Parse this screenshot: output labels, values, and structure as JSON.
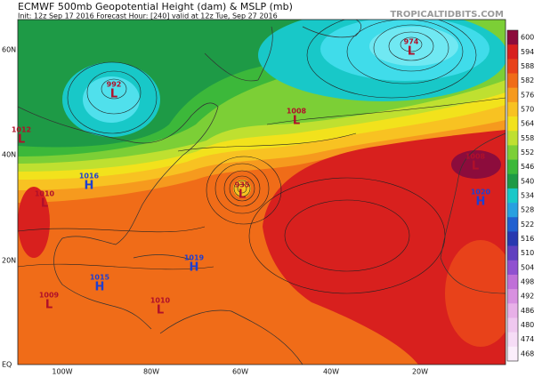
{
  "header": {
    "title": "ECMWF 500mb Geopotential Height (dam) & MSLP (mb)",
    "subtitle": "Init: 12z Sep 17 2016   Forecast Hour: [240]   valid at 12z Tue, Sep 27 2016",
    "credit": "TROPICALTIDBITS.COM"
  },
  "colorbar": {
    "levels": [
      600,
      594,
      588,
      582,
      576,
      570,
      564,
      558,
      552,
      546,
      540,
      534,
      528,
      522,
      516,
      510,
      504,
      498,
      492,
      486,
      480,
      474,
      468
    ],
    "colors": [
      "#8c0c3c",
      "#d8201e",
      "#e8421a",
      "#f06c18",
      "#f69a1e",
      "#f8c222",
      "#f2e21c",
      "#bfe030",
      "#7ccf36",
      "#3cb83a",
      "#1e9a46",
      "#18c8c8",
      "#28a0e0",
      "#2060d0",
      "#2838b0",
      "#6040c0",
      "#9050d0",
      "#c070d8",
      "#d890e0",
      "#e8b0e8",
      "#f0c8f0",
      "#f6dcf6",
      "#fbeefb"
    ]
  },
  "axes": {
    "lat_labels": [
      "60N",
      "40N",
      "20N",
      "EQ"
    ],
    "lon_labels": [
      "100W",
      "80W",
      "60W",
      "40W",
      "20W"
    ]
  },
  "systems": [
    {
      "pressure": 992,
      "letter": "L"
    },
    {
      "pressure": 974,
      "letter": "L"
    },
    {
      "pressure": 1008,
      "letter": "L"
    },
    {
      "pressure": 935,
      "letter": "L"
    },
    {
      "pressure": 1012,
      "letter": "L"
    },
    {
      "pressure": 1016,
      "letter": "H"
    },
    {
      "pressure": 1010,
      "letter": "L"
    },
    {
      "pressure": 1015,
      "letter": "H"
    },
    {
      "pressure": 1019,
      "letter": "H"
    },
    {
      "pressure": 1010,
      "letter": "L"
    },
    {
      "pressure": 1009,
      "letter": "L"
    },
    {
      "pressure": 1008,
      "letter": "L"
    },
    {
      "pressure": 1020,
      "letter": "H"
    }
  ]
}
